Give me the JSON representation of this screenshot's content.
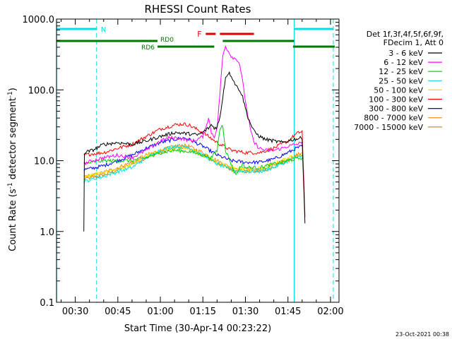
{
  "chart_data": {
    "type": "line",
    "title": "RHESSI Count Rates",
    "xlabel": "Start Time (30-Apr-14 00:23:22)",
    "ylabel_main": "Count Rate (s",
    "ylabel_sup1": "-1",
    "ylabel_mid": " detector segment",
    "ylabel_sup2": "-1",
    "ylabel_end": ")",
    "footer_date": "23-Oct-2021 00:38",
    "y_scale": "log",
    "xlim_minutes": [
      23.37,
      123.0
    ],
    "ylim": [
      0.1,
      1000.0
    ],
    "x_ticks": [
      {
        "min": 30,
        "label": "00:30"
      },
      {
        "min": 45,
        "label": "00:45"
      },
      {
        "min": 60,
        "label": "01:00"
      },
      {
        "min": 75,
        "label": "01:15"
      },
      {
        "min": 90,
        "label": "01:30"
      },
      {
        "min": 105,
        "label": "01:45"
      },
      {
        "min": 120,
        "label": "02:00"
      }
    ],
    "y_ticks": [
      {
        "v": 0.1,
        "label": "0.1"
      },
      {
        "v": 1.0,
        "label": "1.0"
      },
      {
        "v": 10.0,
        "label": "10.0"
      },
      {
        "v": 100.0,
        "label": "100.0"
      },
      {
        "v": 1000.0,
        "label": "1000.0"
      }
    ],
    "legend": {
      "header": [
        "Det 1f,3f,4f,5f,6f,9f,",
        "FDecim 1, Att 0"
      ],
      "placement": "right"
    },
    "series": [
      {
        "name": "3 - 6 keV",
        "color": "#000000",
        "points": [
          [
            33,
            1.0
          ],
          [
            33.2,
            13
          ],
          [
            36,
            14
          ],
          [
            40,
            17
          ],
          [
            45,
            18
          ],
          [
            50,
            17
          ],
          [
            55,
            19
          ],
          [
            60,
            22
          ],
          [
            65,
            25
          ],
          [
            70,
            24
          ],
          [
            73,
            23
          ],
          [
            75,
            25
          ],
          [
            77,
            29
          ],
          [
            78,
            32
          ],
          [
            79,
            29
          ],
          [
            80,
            30
          ],
          [
            81,
            40
          ],
          [
            82,
            80
          ],
          [
            83,
            150
          ],
          [
            84,
            175
          ],
          [
            85,
            160
          ],
          [
            86,
            130
          ],
          [
            87,
            110
          ],
          [
            88,
            100
          ],
          [
            89,
            80
          ],
          [
            90,
            55
          ],
          [
            91,
            40
          ],
          [
            92,
            32
          ],
          [
            93,
            26
          ],
          [
            95,
            22
          ],
          [
            97,
            20
          ],
          [
            100,
            19
          ],
          [
            103,
            18
          ],
          [
            105,
            19
          ],
          [
            107,
            20
          ],
          [
            110,
            21
          ],
          [
            111,
            1.3
          ]
        ]
      },
      {
        "name": "6 - 12 keV",
        "color": "#ff00ff",
        "points": [
          [
            33,
            9
          ],
          [
            36,
            10
          ],
          [
            40,
            11
          ],
          [
            45,
            12
          ],
          [
            50,
            11
          ],
          [
            55,
            14
          ],
          [
            60,
            19
          ],
          [
            63,
            21
          ],
          [
            66,
            21
          ],
          [
            69,
            20
          ],
          [
            72,
            19
          ],
          [
            75,
            22
          ],
          [
            76,
            30
          ],
          [
            77,
            40
          ],
          [
            78,
            25
          ],
          [
            79,
            22
          ],
          [
            80,
            28
          ],
          [
            81,
            90
          ],
          [
            82,
            300
          ],
          [
            83,
            420
          ],
          [
            84,
            350
          ],
          [
            85,
            300
          ],
          [
            86,
            280
          ],
          [
            87,
            270
          ],
          [
            88,
            230
          ],
          [
            89,
            130
          ],
          [
            90,
            70
          ],
          [
            91,
            40
          ],
          [
            92,
            25
          ],
          [
            93,
            18
          ],
          [
            95,
            15
          ],
          [
            97,
            14
          ],
          [
            100,
            14
          ],
          [
            103,
            15
          ],
          [
            105,
            16
          ],
          [
            108,
            17
          ],
          [
            110,
            18
          ]
        ]
      },
      {
        "name": "12 - 25 keV",
        "color": "#00cc00",
        "points": [
          [
            33,
            9
          ],
          [
            36,
            9.5
          ],
          [
            40,
            10
          ],
          [
            45,
            10
          ],
          [
            50,
            10
          ],
          [
            55,
            11
          ],
          [
            60,
            13
          ],
          [
            65,
            14
          ],
          [
            70,
            13.5
          ],
          [
            75,
            12
          ],
          [
            78,
            11
          ],
          [
            80,
            14
          ],
          [
            81,
            28
          ],
          [
            82,
            32
          ],
          [
            83,
            14
          ],
          [
            85,
            9
          ],
          [
            86,
            7
          ],
          [
            87,
            6.5
          ],
          [
            88,
            8
          ],
          [
            89,
            9
          ],
          [
            90,
            8
          ],
          [
            95,
            8
          ],
          [
            100,
            9
          ],
          [
            105,
            10
          ],
          [
            110,
            11
          ]
        ]
      },
      {
        "name": "25 - 50 keV",
        "color": "#00e0e0",
        "points": [
          [
            33,
            5
          ],
          [
            36,
            5.5
          ],
          [
            40,
            6
          ],
          [
            45,
            7
          ],
          [
            50,
            8
          ],
          [
            55,
            11
          ],
          [
            60,
            14
          ],
          [
            65,
            16
          ],
          [
            70,
            15.5
          ],
          [
            75,
            12
          ],
          [
            80,
            9
          ],
          [
            85,
            7.5
          ],
          [
            90,
            7
          ],
          [
            95,
            7
          ],
          [
            100,
            8
          ],
          [
            105,
            10
          ],
          [
            110,
            12
          ]
        ]
      },
      {
        "name": "50 - 100 keV",
        "color": "#ffe000",
        "points": [
          [
            33,
            6
          ],
          [
            36,
            6.2
          ],
          [
            40,
            7
          ],
          [
            45,
            7.5
          ],
          [
            50,
            9
          ],
          [
            55,
            11.5
          ],
          [
            60,
            14
          ],
          [
            65,
            15
          ],
          [
            70,
            15
          ],
          [
            75,
            12
          ],
          [
            80,
            9.5
          ],
          [
            85,
            8
          ],
          [
            90,
            7.5
          ],
          [
            95,
            7.8
          ],
          [
            100,
            9
          ],
          [
            105,
            11
          ],
          [
            110,
            12
          ]
        ]
      },
      {
        "name": "100 - 300 keV",
        "color": "#ff0000",
        "points": [
          [
            33,
            12
          ],
          [
            36,
            12.5
          ],
          [
            40,
            13
          ],
          [
            45,
            15
          ],
          [
            50,
            17
          ],
          [
            55,
            22
          ],
          [
            60,
            28
          ],
          [
            65,
            32
          ],
          [
            68,
            33
          ],
          [
            70,
            32
          ],
          [
            75,
            25
          ],
          [
            80,
            18
          ],
          [
            85,
            14
          ],
          [
            90,
            13
          ],
          [
            95,
            13
          ],
          [
            100,
            15
          ],
          [
            105,
            19
          ],
          [
            108,
            24
          ],
          [
            110,
            26
          ],
          [
            111,
            1.6
          ]
        ]
      },
      {
        "name": "300 - 800 keV",
        "color": "#0000ff",
        "points": [
          [
            33,
            7.5
          ],
          [
            36,
            7.8
          ],
          [
            40,
            8.5
          ],
          [
            45,
            10
          ],
          [
            50,
            12
          ],
          [
            55,
            15
          ],
          [
            60,
            18
          ],
          [
            65,
            20
          ],
          [
            68,
            21
          ],
          [
            70,
            20
          ],
          [
            75,
            16
          ],
          [
            80,
            12
          ],
          [
            85,
            10
          ],
          [
            90,
            9.5
          ],
          [
            95,
            9.5
          ],
          [
            100,
            10.5
          ],
          [
            105,
            13
          ],
          [
            108,
            15
          ],
          [
            110,
            16
          ]
        ]
      },
      {
        "name": "800 - 7000 keV",
        "color": "#ff8c00",
        "points": [
          [
            33,
            6
          ],
          [
            36,
            6.2
          ],
          [
            40,
            6.8
          ],
          [
            45,
            8
          ],
          [
            50,
            9.5
          ],
          [
            55,
            12
          ],
          [
            60,
            14
          ],
          [
            65,
            16
          ],
          [
            68,
            16.5
          ],
          [
            70,
            16
          ],
          [
            75,
            13
          ],
          [
            80,
            10
          ],
          [
            85,
            8
          ],
          [
            90,
            7.5
          ],
          [
            95,
            7.5
          ],
          [
            100,
            8.5
          ],
          [
            105,
            10.5
          ],
          [
            108,
            12
          ],
          [
            110,
            13
          ]
        ]
      },
      {
        "name": "7000 - 15000 keV",
        "color": "#b8860b",
        "points": [
          [
            33,
            5.5
          ],
          [
            36,
            5.8
          ],
          [
            40,
            6.3
          ],
          [
            45,
            7.4
          ],
          [
            50,
            9
          ],
          [
            55,
            11
          ],
          [
            60,
            13
          ],
          [
            65,
            15
          ],
          [
            68,
            15.5
          ],
          [
            70,
            15
          ],
          [
            75,
            12
          ],
          [
            80,
            9.3
          ],
          [
            85,
            7.5
          ],
          [
            90,
            7
          ],
          [
            95,
            7.1
          ],
          [
            100,
            8
          ],
          [
            105,
            10
          ],
          [
            108,
            11.5
          ],
          [
            110,
            12
          ]
        ]
      }
    ],
    "annotations": {
      "n_label": "N",
      "n_intervals": [
        [
          23.4,
          37.5
        ],
        [
          107.2,
          121.0
        ]
      ],
      "flag_label": "F",
      "flag_color": "#dd0000",
      "flag_intervals": [
        [
          76.0,
          79.5
        ],
        [
          81.0,
          93.0
        ]
      ],
      "rd0_label": "RD0",
      "rd0_intervals": [
        [
          23.4,
          59.0
        ],
        [
          82.0,
          107.2
        ]
      ],
      "rd6_label": "RD6",
      "rd6_intervals": [
        [
          59.0,
          79.0
        ],
        [
          106.8,
          121.5
        ]
      ],
      "rd_color": "#007700",
      "n_color": "#00e0e0",
      "solid_vlines_min": [
        23.4,
        107.2
      ],
      "dashed_vlines_min": [
        37.5,
        121.0
      ],
      "vline_color": "#00e0e0"
    }
  }
}
